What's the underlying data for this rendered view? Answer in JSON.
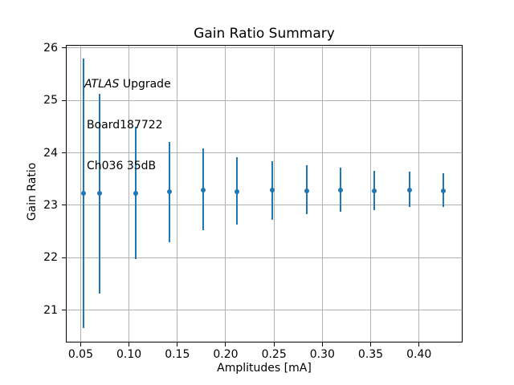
{
  "figure": {
    "title": "Gain Ratio Summary",
    "xlabel": "Amplitudes [mA]",
    "ylabel": "Gain Ratio"
  },
  "annotation": {
    "line1_italic": "ATLAS",
    "line1_rest": " Upgrade",
    "line2": "Board187722",
    "line3": "Ch036 35dB"
  },
  "chart_data": {
    "type": "scatter",
    "subtype": "errorbar",
    "title": "Gain Ratio Summary",
    "xlabel": "Amplitudes [mA]",
    "ylabel": "Gain Ratio",
    "x": [
      0.053,
      0.07,
      0.107,
      0.142,
      0.177,
      0.212,
      0.248,
      0.284,
      0.319,
      0.354,
      0.39,
      0.425
    ],
    "y": [
      23.23,
      23.23,
      23.23,
      23.26,
      23.29,
      23.26,
      23.29,
      23.28,
      23.29,
      23.28,
      23.29,
      23.28
    ],
    "yerr_up": [
      2.57,
      1.9,
      1.27,
      0.94,
      0.8,
      0.65,
      0.55,
      0.48,
      0.43,
      0.37,
      0.35,
      0.33
    ],
    "yerr_down": [
      2.57,
      1.92,
      1.26,
      0.97,
      0.76,
      0.63,
      0.57,
      0.45,
      0.42,
      0.38,
      0.33,
      0.31
    ],
    "xlim": [
      0.0347,
      0.4451
    ],
    "ylim": [
      20.38,
      26.06
    ],
    "xticks": [
      0.05,
      0.1,
      0.15,
      0.2,
      0.25,
      0.3,
      0.35,
      0.4
    ],
    "xtick_labels": [
      "0.05",
      "0.10",
      "0.15",
      "0.20",
      "0.25",
      "0.30",
      "0.35",
      "0.40"
    ],
    "yticks": [
      21,
      22,
      23,
      24,
      25,
      26
    ],
    "ytick_labels": [
      "21",
      "22",
      "23",
      "24",
      "25",
      "26"
    ],
    "grid": true,
    "legend": false,
    "annotation_lines": [
      "ATLAS Upgrade",
      "Board187722",
      "Ch036 35dB"
    ],
    "colors": {
      "series": "#1f77b4",
      "grid": "#b0b0b0",
      "spine": "#000000",
      "text": "#000000"
    }
  }
}
